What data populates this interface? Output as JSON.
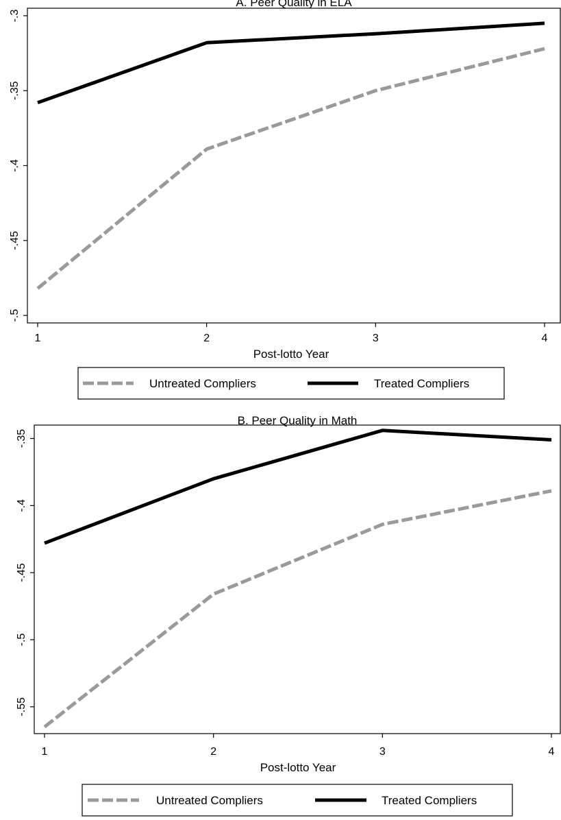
{
  "chart_data": [
    {
      "type": "line",
      "title": "A.  Peer Quality in ELA",
      "xlabel": "Post-lotto Year",
      "ylabel": "",
      "x": [
        1,
        2,
        3,
        4
      ],
      "xticks": [
        "1",
        "2",
        "3",
        "4"
      ],
      "yticks": [
        "-.3",
        "-.35",
        "-.4",
        "-.45",
        "-.5"
      ],
      "ytick_values": [
        -0.3,
        -0.35,
        -0.4,
        -0.45,
        -0.5
      ],
      "ylim": [
        -0.505,
        -0.295
      ],
      "xlim": [
        1,
        4
      ],
      "grid": false,
      "legend_position": "bottom",
      "series": [
        {
          "name": "Untreated Compliers",
          "color": "#9a9a9a",
          "style": "dashed",
          "values": [
            -0.482,
            -0.389,
            -0.35,
            -0.322
          ]
        },
        {
          "name": "Treated Compliers",
          "color": "#000000",
          "style": "solid",
          "values": [
            -0.358,
            -0.318,
            -0.312,
            -0.305
          ]
        }
      ]
    },
    {
      "type": "line",
      "title": "B.  Peer Quality in Math",
      "xlabel": "Post-lotto Year",
      "ylabel": "",
      "x": [
        1,
        2,
        3,
        4
      ],
      "xticks": [
        "1",
        "2",
        "3",
        "4"
      ],
      "yticks": [
        "-.35",
        "-.4",
        "-.45",
        "-.5",
        "-.55"
      ],
      "ytick_values": [
        -0.35,
        -0.4,
        -0.45,
        -0.5,
        -0.55
      ],
      "ylim": [
        -0.57,
        -0.34
      ],
      "xlim": [
        1,
        4
      ],
      "grid": false,
      "legend_position": "bottom",
      "series": [
        {
          "name": "Untreated Compliers",
          "color": "#9a9a9a",
          "style": "dashed",
          "values": [
            -0.565,
            -0.466,
            -0.414,
            -0.389
          ]
        },
        {
          "name": "Treated Compliers",
          "color": "#000000",
          "style": "solid",
          "values": [
            -0.428,
            -0.38,
            -0.344,
            -0.351
          ]
        }
      ]
    }
  ]
}
